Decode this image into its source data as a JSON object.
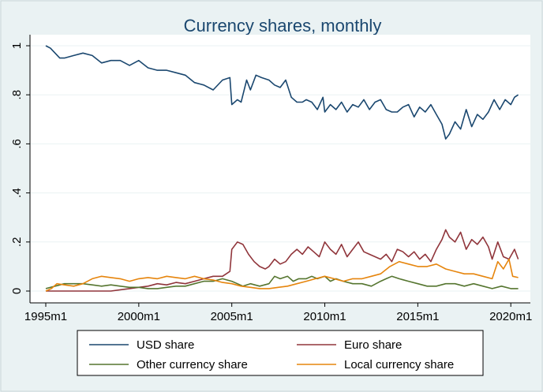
{
  "chart_data": {
    "type": "line",
    "title": "Currency shares, monthly",
    "xlabel": "",
    "ylabel": "",
    "x_unit": "year",
    "xlim": [
      1995.0,
      2020.5
    ],
    "ylim": [
      0,
      1
    ],
    "x_ticks": [
      {
        "value": 1995,
        "label": "1995m1"
      },
      {
        "value": 2000,
        "label": "2000m1"
      },
      {
        "value": 2005,
        "label": "2005m1"
      },
      {
        "value": 2010,
        "label": "2010m1"
      },
      {
        "value": 2015,
        "label": "2015m1"
      },
      {
        "value": 2020,
        "label": "2020m1"
      }
    ],
    "y_ticks": [
      {
        "value": 0,
        "label": "0"
      },
      {
        "value": 0.2,
        "label": ".2"
      },
      {
        "value": 0.4,
        "label": ".4"
      },
      {
        "value": 0.6,
        "label": ".6"
      },
      {
        "value": 0.8,
        "label": ".8"
      },
      {
        "value": 1,
        "label": "1"
      }
    ],
    "grid": true,
    "legend_position": "bottom",
    "series": [
      {
        "name": "USD share",
        "color": "#1a476f",
        "x": [
          1995.0,
          1995.25,
          1995.5,
          1995.75,
          1996.0,
          1996.5,
          1997.0,
          1997.5,
          1998.0,
          1998.5,
          1999.0,
          1999.5,
          2000.0,
          2000.5,
          2001.0,
          2001.5,
          2002.0,
          2002.5,
          2003.0,
          2003.5,
          2004.0,
          2004.5,
          2004.9,
          2005.0,
          2005.3,
          2005.5,
          2005.8,
          2006.0,
          2006.3,
          2006.6,
          2007.0,
          2007.3,
          2007.6,
          2007.9,
          2008.2,
          2008.5,
          2008.8,
          2009.0,
          2009.3,
          2009.6,
          2009.9,
          2010.0,
          2010.3,
          2010.6,
          2010.9,
          2011.2,
          2011.5,
          2011.8,
          2012.1,
          2012.4,
          2012.7,
          2013.0,
          2013.3,
          2013.6,
          2013.9,
          2014.2,
          2014.5,
          2014.8,
          2015.1,
          2015.4,
          2015.7,
          2016.0,
          2016.3,
          2016.5,
          2016.7,
          2017.0,
          2017.3,
          2017.6,
          2017.9,
          2018.2,
          2018.5,
          2018.8,
          2019.1,
          2019.4,
          2019.7,
          2020.0,
          2020.2,
          2020.4
        ],
        "values": [
          1.0,
          0.99,
          0.97,
          0.95,
          0.95,
          0.96,
          0.97,
          0.96,
          0.93,
          0.94,
          0.94,
          0.92,
          0.94,
          0.91,
          0.9,
          0.9,
          0.89,
          0.88,
          0.85,
          0.84,
          0.82,
          0.86,
          0.87,
          0.76,
          0.78,
          0.77,
          0.86,
          0.82,
          0.88,
          0.87,
          0.86,
          0.84,
          0.83,
          0.86,
          0.79,
          0.77,
          0.77,
          0.78,
          0.77,
          0.74,
          0.79,
          0.73,
          0.76,
          0.74,
          0.77,
          0.73,
          0.76,
          0.75,
          0.78,
          0.74,
          0.77,
          0.78,
          0.74,
          0.73,
          0.73,
          0.75,
          0.76,
          0.71,
          0.75,
          0.73,
          0.76,
          0.72,
          0.68,
          0.62,
          0.64,
          0.69,
          0.66,
          0.74,
          0.67,
          0.72,
          0.7,
          0.73,
          0.78,
          0.74,
          0.78,
          0.76,
          0.79,
          0.8
        ]
      },
      {
        "name": "Euro share",
        "color": "#90353b",
        "x": [
          1995.0,
          1996.0,
          1997.0,
          1998.0,
          1998.5,
          1999.0,
          1999.5,
          2000.0,
          2000.5,
          2001.0,
          2001.5,
          2002.0,
          2002.5,
          2003.0,
          2003.5,
          2004.0,
          2004.5,
          2004.9,
          2005.0,
          2005.3,
          2005.6,
          2005.9,
          2006.2,
          2006.5,
          2006.8,
          2007.0,
          2007.3,
          2007.6,
          2007.9,
          2008.2,
          2008.5,
          2008.8,
          2009.1,
          2009.4,
          2009.7,
          2010.0,
          2010.3,
          2010.6,
          2010.9,
          2011.2,
          2011.5,
          2011.8,
          2012.1,
          2012.4,
          2012.7,
          2013.0,
          2013.3,
          2013.6,
          2013.9,
          2014.2,
          2014.5,
          2014.8,
          2015.1,
          2015.4,
          2015.7,
          2016.0,
          2016.3,
          2016.5,
          2016.7,
          2017.0,
          2017.3,
          2017.6,
          2017.9,
          2018.2,
          2018.5,
          2018.8,
          2019.0,
          2019.3,
          2019.6,
          2019.9,
          2020.2,
          2020.4
        ],
        "values": [
          0.0,
          0.0,
          0.0,
          0.0,
          0.0,
          0.005,
          0.01,
          0.015,
          0.02,
          0.03,
          0.025,
          0.035,
          0.03,
          0.04,
          0.05,
          0.06,
          0.06,
          0.08,
          0.17,
          0.2,
          0.19,
          0.15,
          0.12,
          0.1,
          0.09,
          0.1,
          0.13,
          0.11,
          0.12,
          0.15,
          0.17,
          0.15,
          0.18,
          0.16,
          0.14,
          0.2,
          0.17,
          0.15,
          0.19,
          0.14,
          0.17,
          0.2,
          0.16,
          0.15,
          0.14,
          0.13,
          0.15,
          0.12,
          0.17,
          0.16,
          0.14,
          0.16,
          0.13,
          0.15,
          0.12,
          0.17,
          0.21,
          0.25,
          0.22,
          0.2,
          0.24,
          0.17,
          0.21,
          0.19,
          0.22,
          0.18,
          0.13,
          0.2,
          0.14,
          0.13,
          0.17,
          0.13
        ]
      },
      {
        "name": "Other currency share",
        "color": "#55752f",
        "x": [
          1995.0,
          1995.5,
          1996.0,
          1996.5,
          1997.0,
          1997.5,
          1998.0,
          1998.5,
          1999.0,
          1999.5,
          2000.0,
          2000.5,
          2001.0,
          2001.5,
          2002.0,
          2002.5,
          2003.0,
          2003.5,
          2004.0,
          2004.5,
          2005.0,
          2005.3,
          2005.6,
          2006.0,
          2006.5,
          2007.0,
          2007.3,
          2007.6,
          2008.0,
          2008.3,
          2008.6,
          2009.0,
          2009.3,
          2009.6,
          2010.0,
          2010.3,
          2010.6,
          2011.0,
          2011.5,
          2012.0,
          2012.5,
          2013.0,
          2013.3,
          2013.6,
          2014.0,
          2014.5,
          2015.0,
          2015.5,
          2016.0,
          2016.5,
          2017.0,
          2017.5,
          2018.0,
          2018.5,
          2019.0,
          2019.5,
          2020.0,
          2020.4
        ],
        "values": [
          0.01,
          0.02,
          0.03,
          0.03,
          0.03,
          0.025,
          0.02,
          0.025,
          0.02,
          0.015,
          0.015,
          0.01,
          0.01,
          0.015,
          0.02,
          0.02,
          0.03,
          0.04,
          0.04,
          0.05,
          0.04,
          0.03,
          0.02,
          0.03,
          0.02,
          0.03,
          0.06,
          0.05,
          0.06,
          0.04,
          0.05,
          0.05,
          0.06,
          0.05,
          0.06,
          0.04,
          0.05,
          0.04,
          0.03,
          0.03,
          0.02,
          0.04,
          0.05,
          0.06,
          0.05,
          0.04,
          0.03,
          0.02,
          0.02,
          0.03,
          0.03,
          0.02,
          0.03,
          0.02,
          0.01,
          0.02,
          0.01,
          0.01
        ]
      },
      {
        "name": "Local currency share",
        "color": "#e6850d",
        "x": [
          1995.0,
          1995.3,
          1995.6,
          1996.0,
          1996.5,
          1997.0,
          1997.5,
          1998.0,
          1998.5,
          1999.0,
          1999.5,
          2000.0,
          2000.5,
          2001.0,
          2001.5,
          2002.0,
          2002.5,
          2003.0,
          2003.5,
          2004.0,
          2004.5,
          2005.0,
          2005.5,
          2006.0,
          2006.5,
          2007.0,
          2007.5,
          2008.0,
          2008.5,
          2009.0,
          2009.5,
          2010.0,
          2010.5,
          2011.0,
          2011.5,
          2012.0,
          2012.5,
          2013.0,
          2013.5,
          2014.0,
          2014.5,
          2015.0,
          2015.5,
          2016.0,
          2016.5,
          2017.0,
          2017.5,
          2018.0,
          2018.5,
          2019.0,
          2019.3,
          2019.6,
          2019.9,
          2020.1,
          2020.4
        ],
        "values": [
          0.0,
          0.01,
          0.03,
          0.025,
          0.02,
          0.03,
          0.05,
          0.06,
          0.055,
          0.05,
          0.04,
          0.05,
          0.055,
          0.05,
          0.06,
          0.055,
          0.05,
          0.06,
          0.05,
          0.045,
          0.035,
          0.03,
          0.02,
          0.015,
          0.01,
          0.01,
          0.015,
          0.02,
          0.03,
          0.04,
          0.05,
          0.06,
          0.05,
          0.04,
          0.05,
          0.05,
          0.06,
          0.07,
          0.1,
          0.12,
          0.11,
          0.1,
          0.1,
          0.11,
          0.09,
          0.08,
          0.07,
          0.07,
          0.06,
          0.05,
          0.12,
          0.09,
          0.13,
          0.06,
          0.055
        ]
      }
    ]
  }
}
